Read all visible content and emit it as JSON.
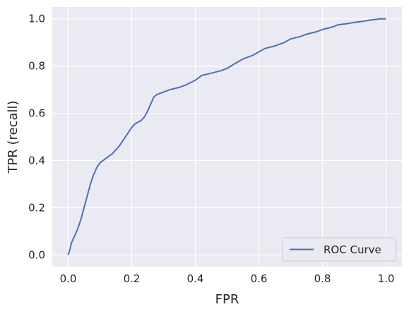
{
  "colors": {
    "plot_background": "#eaeaf2",
    "grid": "#ffffff",
    "line": "#4c72b0",
    "text": "#262626",
    "legend_border": "#cccccc"
  },
  "chart_data": {
    "type": "line",
    "title": "",
    "xlabel": "FPR",
    "ylabel": "TPR (recall)",
    "xlim": [
      -0.05,
      1.05
    ],
    "ylim": [
      -0.05,
      1.05
    ],
    "xticks": [
      0.0,
      0.2,
      0.4,
      0.6,
      0.8,
      1.0
    ],
    "yticks": [
      0.0,
      0.2,
      0.4,
      0.6,
      0.8,
      1.0
    ],
    "xtick_labels": [
      "0.0",
      "0.2",
      "0.4",
      "0.6",
      "0.8",
      "1.0"
    ],
    "ytick_labels": [
      "0.0",
      "0.2",
      "0.4",
      "0.6",
      "0.8",
      "1.0"
    ],
    "grid": true,
    "legend_position": "bottom-right",
    "series": [
      {
        "name": "ROC Curve",
        "x": [
          0.0,
          0.005,
          0.01,
          0.02,
          0.03,
          0.04,
          0.05,
          0.06,
          0.07,
          0.08,
          0.09,
          0.1,
          0.11,
          0.12,
          0.14,
          0.16,
          0.18,
          0.19,
          0.2,
          0.21,
          0.23,
          0.24,
          0.25,
          0.26,
          0.27,
          0.28,
          0.3,
          0.32,
          0.35,
          0.37,
          0.4,
          0.42,
          0.45,
          0.48,
          0.5,
          0.53,
          0.55,
          0.58,
          0.6,
          0.62,
          0.65,
          0.68,
          0.7,
          0.73,
          0.75,
          0.78,
          0.8,
          0.83,
          0.85,
          0.88,
          0.9,
          0.93,
          0.95,
          0.97,
          0.98,
          1.0
        ],
        "y": [
          0.0,
          0.02,
          0.05,
          0.08,
          0.11,
          0.15,
          0.2,
          0.25,
          0.3,
          0.34,
          0.37,
          0.39,
          0.4,
          0.41,
          0.43,
          0.46,
          0.5,
          0.52,
          0.54,
          0.555,
          0.57,
          0.585,
          0.61,
          0.64,
          0.67,
          0.68,
          0.69,
          0.7,
          0.71,
          0.72,
          0.74,
          0.76,
          0.77,
          0.78,
          0.79,
          0.815,
          0.83,
          0.845,
          0.86,
          0.875,
          0.885,
          0.9,
          0.915,
          0.925,
          0.935,
          0.945,
          0.955,
          0.965,
          0.975,
          0.98,
          0.985,
          0.99,
          0.995,
          0.998,
          1.0,
          1.0
        ]
      }
    ]
  }
}
